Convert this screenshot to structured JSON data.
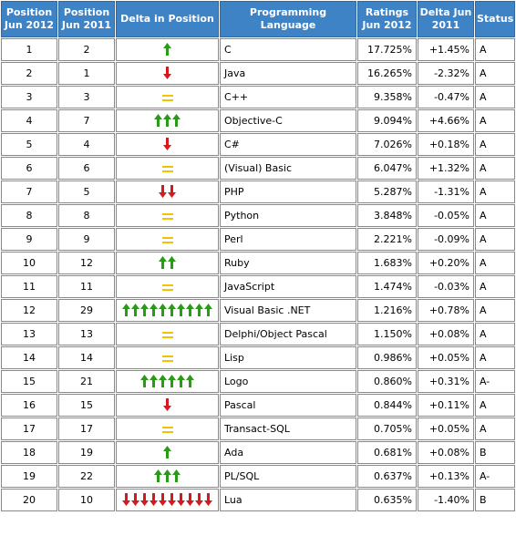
{
  "header": {
    "pos_2012": "Position Jun 2012",
    "pos_2011": "Position Jun 2011",
    "delta_pos": "Delta in Position",
    "language": "Programming Language",
    "ratings": "Ratings Jun 2012",
    "delta_2011": "Delta Jun 2011",
    "status": "Status"
  },
  "colors": {
    "header_bg": "#3d83c6",
    "arrow_up": "#2a9a18",
    "arrow_down": "#d8181c",
    "equal": "#f2c400",
    "link": "#1a3c8c"
  },
  "rows": [
    {
      "pos2012": "1",
      "pos2011": "2",
      "trend": "up",
      "count": 1,
      "lang": "C",
      "rating": "17.725%",
      "delta": "+1.45%",
      "status": "A"
    },
    {
      "pos2012": "2",
      "pos2011": "1",
      "trend": "down",
      "count": 1,
      "lang": "Java",
      "rating": "16.265%",
      "delta": "-2.32%",
      "status": "A"
    },
    {
      "pos2012": "3",
      "pos2011": "3",
      "trend": "equal",
      "count": 1,
      "lang": "C++",
      "rating": "9.358%",
      "delta": "-0.47%",
      "status": "A"
    },
    {
      "pos2012": "4",
      "pos2011": "7",
      "trend": "up",
      "count": 3,
      "lang": "Objective-C",
      "rating": "9.094%",
      "delta": "+4.66%",
      "status": "A"
    },
    {
      "pos2012": "5",
      "pos2011": "4",
      "trend": "down",
      "count": 1,
      "lang": "C#",
      "rating": "7.026%",
      "delta": "+0.18%",
      "status": "A"
    },
    {
      "pos2012": "6",
      "pos2011": "6",
      "trend": "equal",
      "count": 1,
      "lang": "(Visual) Basic",
      "rating": "6.047%",
      "delta": "+1.32%",
      "status": "A"
    },
    {
      "pos2012": "7",
      "pos2011": "5",
      "trend": "down",
      "count": 2,
      "lang": "PHP",
      "rating": "5.287%",
      "delta": "-1.31%",
      "status": "A"
    },
    {
      "pos2012": "8",
      "pos2011": "8",
      "trend": "equal",
      "count": 1,
      "lang": "Python",
      "rating": "3.848%",
      "delta": "-0.05%",
      "status": "A"
    },
    {
      "pos2012": "9",
      "pos2011": "9",
      "trend": "equal",
      "count": 1,
      "lang": "Perl",
      "rating": "2.221%",
      "delta": "-0.09%",
      "status": "A"
    },
    {
      "pos2012": "10",
      "pos2011": "12",
      "trend": "up",
      "count": 2,
      "lang": "Ruby",
      "rating": "1.683%",
      "delta": "+0.20%",
      "status": "A"
    },
    {
      "pos2012": "11",
      "pos2011": "11",
      "trend": "equal",
      "count": 1,
      "lang": "JavaScript",
      "rating": "1.474%",
      "delta": "-0.03%",
      "status": "A"
    },
    {
      "pos2012": "12",
      "pos2011": "29",
      "trend": "up",
      "count": 10,
      "lang": "Visual Basic .NET",
      "rating": "1.216%",
      "delta": "+0.78%",
      "status": "A"
    },
    {
      "pos2012": "13",
      "pos2011": "13",
      "trend": "equal",
      "count": 1,
      "lang": "Delphi/Object Pascal",
      "rating": "1.150%",
      "delta": "+0.08%",
      "status": "A"
    },
    {
      "pos2012": "14",
      "pos2011": "14",
      "trend": "equal",
      "count": 1,
      "lang": "Lisp",
      "rating": "0.986%",
      "delta": "+0.05%",
      "status": "A"
    },
    {
      "pos2012": "15",
      "pos2011": "21",
      "trend": "up",
      "count": 6,
      "lang": "Logo",
      "rating": "0.860%",
      "delta": "+0.31%",
      "status": "A-"
    },
    {
      "pos2012": "16",
      "pos2011": "15",
      "trend": "down",
      "count": 1,
      "lang": "Pascal",
      "rating": "0.844%",
      "delta": "+0.11%",
      "status": "A"
    },
    {
      "pos2012": "17",
      "pos2011": "17",
      "trend": "equal",
      "count": 1,
      "lang": "Transact-SQL",
      "rating": "0.705%",
      "delta": "+0.05%",
      "status": "A"
    },
    {
      "pos2012": "18",
      "pos2011": "19",
      "trend": "up",
      "count": 1,
      "lang": "Ada",
      "rating": "0.681%",
      "delta": "+0.08%",
      "status": "B"
    },
    {
      "pos2012": "19",
      "pos2011": "22",
      "trend": "up",
      "count": 3,
      "lang": "PL/SQL",
      "rating": "0.637%",
      "delta": "+0.13%",
      "status": "A-"
    },
    {
      "pos2012": "20",
      "pos2011": "10",
      "trend": "down",
      "count": 10,
      "lang": "Lua",
      "rating": "0.635%",
      "delta": "-1.40%",
      "status": "B"
    }
  ]
}
